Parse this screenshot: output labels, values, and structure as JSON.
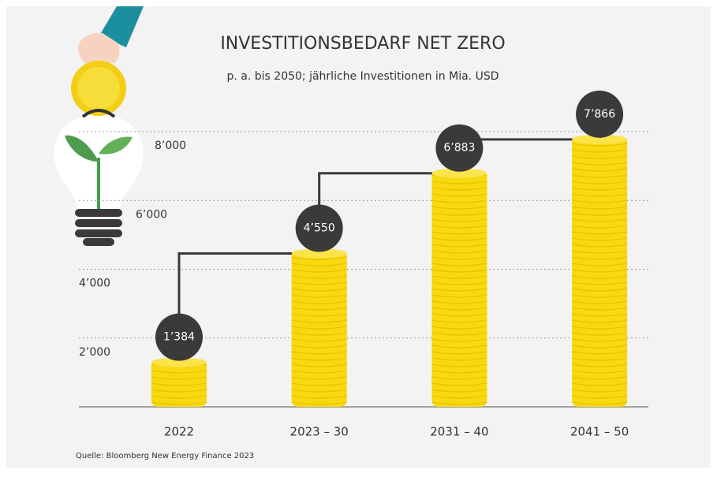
{
  "chart_data": {
    "type": "bar",
    "title": "INVESTITIONSBEDARF NET ZERO",
    "subtitle": "p. a. bis 2050; jährliche Investitionen in Mia. USD",
    "source": "Quelle: Bloomberg New Energy Finance 2023",
    "categories": [
      "2022",
      "2023 – 30",
      "2031 – 40",
      "2041 – 50"
    ],
    "values": [
      1384,
      4550,
      6883,
      7866
    ],
    "value_labels": [
      "1’384",
      "4’550",
      "6’883",
      "7’866"
    ],
    "color": "#f7d90f",
    "ylim": [
      0,
      8000
    ],
    "yticks": [
      {
        "value": 2000,
        "label": "2’000"
      },
      {
        "value": 4000,
        "label": "4’000"
      },
      {
        "value": 6000,
        "label": "6’000"
      },
      {
        "value": 8000,
        "label": "8’000"
      }
    ],
    "grid": true
  }
}
